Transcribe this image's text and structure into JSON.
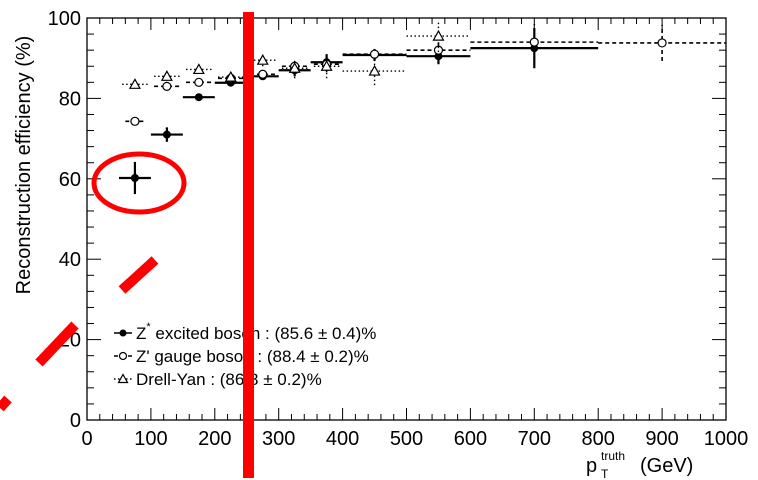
{
  "chart_data": {
    "type": "scatter",
    "xlabel": "p",
    "xlabel_sup": "truth",
    "xlabel_sub": "T",
    "xlabel_unit": "(GeV)",
    "ylabel": "Reconstruction efficiency (%)",
    "xlim": [
      0,
      1000
    ],
    "ylim": [
      0,
      100
    ],
    "x_ticks": [
      0,
      100,
      200,
      300,
      400,
      500,
      600,
      700,
      800,
      900,
      1000
    ],
    "y_ticks": [
      0,
      20,
      40,
      60,
      80,
      100
    ],
    "grid": false,
    "legend_position": "bottom-left",
    "series": [
      {
        "name": "Z* excited boson : (85.6 ±  0.4)%",
        "legend_main": "Z",
        "legend_sup": "*",
        "legend_rest": " excited boson : (85.6 ±  0.4)%",
        "marker": "filled-circle",
        "line": "solid",
        "color": "#000000",
        "points": [
          {
            "x": 75,
            "xlo": 50,
            "xhi": 100,
            "y": 60.2,
            "err": 4.0
          },
          {
            "x": 125,
            "xlo": 100,
            "xhi": 150,
            "y": 71.0,
            "err": 1.8
          },
          {
            "x": 175,
            "xlo": 150,
            "xhi": 200,
            "y": 80.3,
            "err": 0.8
          },
          {
            "x": 225,
            "xlo": 200,
            "xhi": 250,
            "y": 83.9,
            "err": 0.8
          },
          {
            "x": 275,
            "xlo": 250,
            "xhi": 300,
            "y": 85.5,
            "err": 0.8
          },
          {
            "x": 325,
            "xlo": 300,
            "xhi": 350,
            "y": 87.0,
            "err": 1.5
          },
          {
            "x": 375,
            "xlo": 350,
            "xhi": 400,
            "y": 89.0,
            "err": 2.0
          },
          {
            "x": 450,
            "xlo": 400,
            "xhi": 500,
            "y": 90.8,
            "err": 1.5
          },
          {
            "x": 550,
            "xlo": 500,
            "xhi": 600,
            "y": 90.5,
            "err": 2.0
          },
          {
            "x": 700,
            "xlo": 600,
            "xhi": 800,
            "y": 92.5,
            "err": 5.0
          }
        ]
      },
      {
        "name": "Z' gauge boson : (88.4 ±  0.2)%",
        "marker": "open-circle",
        "line": "dashed",
        "color": "#000000",
        "points": [
          {
            "x": 75,
            "xlo": 60,
            "xhi": 90,
            "y": 74.3,
            "err": 1.0
          },
          {
            "x": 125,
            "xlo": 105,
            "xhi": 145,
            "y": 83.0,
            "err": 0.7
          },
          {
            "x": 175,
            "xlo": 155,
            "xhi": 195,
            "y": 84.0,
            "err": 0.6
          },
          {
            "x": 225,
            "xlo": 205,
            "xhi": 245,
            "y": 85.0,
            "err": 0.7
          },
          {
            "x": 275,
            "xlo": 255,
            "xhi": 295,
            "y": 86.0,
            "err": 0.8
          },
          {
            "x": 325,
            "xlo": 305,
            "xhi": 345,
            "y": 88.0,
            "err": 1.2
          },
          {
            "x": 375,
            "xlo": 355,
            "xhi": 395,
            "y": 88.5,
            "err": 2.0
          },
          {
            "x": 450,
            "xlo": 400,
            "xhi": 500,
            "y": 91.0,
            "err": 1.5
          },
          {
            "x": 550,
            "xlo": 500,
            "xhi": 600,
            "y": 92.0,
            "err": 2.5
          },
          {
            "x": 700,
            "xlo": 600,
            "xhi": 800,
            "y": 94.0,
            "err": 4.5
          },
          {
            "x": 900,
            "xlo": 800,
            "xhi": 1000,
            "y": 93.8,
            "err": 4.5
          }
        ]
      },
      {
        "name": "Drell-Yan : (86.8 ±  0.2)%",
        "marker": "open-triangle",
        "line": "dotted",
        "color": "#000000",
        "points": [
          {
            "x": 75,
            "xlo": 55,
            "xhi": 95,
            "y": 83.5,
            "err": 0.8
          },
          {
            "x": 125,
            "xlo": 105,
            "xhi": 145,
            "y": 85.5,
            "err": 0.8
          },
          {
            "x": 175,
            "xlo": 155,
            "xhi": 195,
            "y": 87.2,
            "err": 0.8
          },
          {
            "x": 225,
            "xlo": 205,
            "xhi": 245,
            "y": 85.3,
            "err": 1.0
          },
          {
            "x": 275,
            "xlo": 255,
            "xhi": 295,
            "y": 89.5,
            "err": 1.5
          },
          {
            "x": 325,
            "xlo": 305,
            "xhi": 345,
            "y": 87.5,
            "err": 2.5
          },
          {
            "x": 375,
            "xlo": 355,
            "xhi": 395,
            "y": 88.0,
            "err": 3.0
          },
          {
            "x": 450,
            "xlo": 400,
            "xhi": 500,
            "y": 86.8,
            "err": 3.5
          },
          {
            "x": 550,
            "xlo": 500,
            "xhi": 600,
            "y": 95.5,
            "err": 4.0
          }
        ]
      }
    ],
    "overlay_annotations": {
      "color": "#ff0000",
      "items": [
        "vertical-line",
        "ellipse-circle",
        "dashed-diagonal"
      ]
    }
  }
}
